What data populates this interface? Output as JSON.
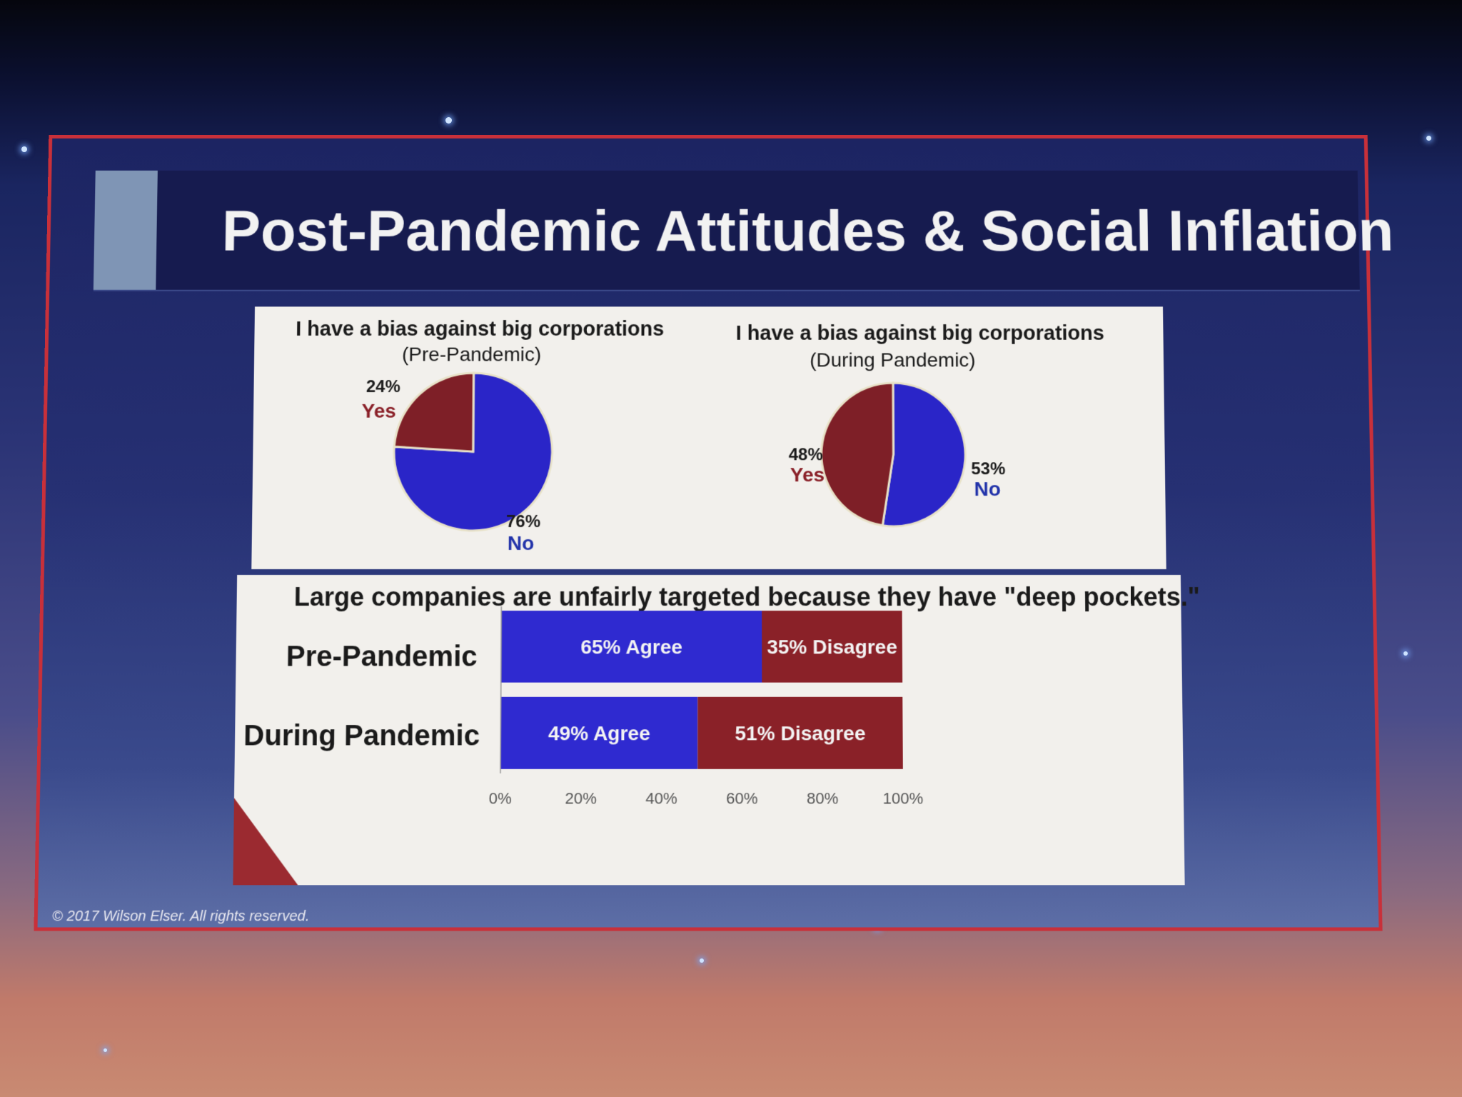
{
  "slide": {
    "title": "Post-Pandemic Attitudes & Social Inflation",
    "footer": "© 2017 Wilson Elser. All rights reserved."
  },
  "colors": {
    "yes": "#7e1f27",
    "no": "#2a25c8",
    "agree": "#2f2ad0",
    "disagree": "#8a2128"
  },
  "chart_data": [
    {
      "type": "pie",
      "title": "I have a bias against big corporations",
      "subtitle": "(Pre-Pandemic)",
      "slices": [
        {
          "label": "Yes",
          "value": 24,
          "value_label": "24%"
        },
        {
          "label": "No",
          "value": 76,
          "value_label": "76%"
        }
      ]
    },
    {
      "type": "pie",
      "title": "I have a bias against big corporations",
      "subtitle": "(During Pandemic)",
      "slices": [
        {
          "label": "Yes",
          "value": 48,
          "value_label": "48%"
        },
        {
          "label": "No",
          "value": 53,
          "value_label": "53%"
        }
      ]
    },
    {
      "type": "bar",
      "orientation": "horizontal",
      "stacked": true,
      "title": "Large companies are unfairly targeted because they have \"deep pockets.\"",
      "categories": [
        "Pre-Pandemic",
        "During Pandemic"
      ],
      "series": [
        {
          "name": "Agree",
          "values": [
            65,
            49
          ],
          "labels": [
            "65% Agree",
            "49% Agree"
          ]
        },
        {
          "name": "Disagree",
          "values": [
            35,
            51
          ],
          "labels": [
            "35% Disagree",
            "51%  Disagree"
          ]
        }
      ],
      "xlim": [
        0,
        100
      ],
      "xticks": [
        "0%",
        "20%",
        "40%",
        "60%",
        "80%",
        "100%"
      ]
    }
  ]
}
